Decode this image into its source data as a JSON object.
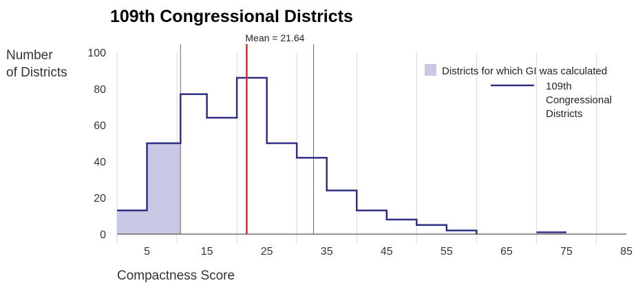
{
  "chart_data": {
    "type": "histogram-step",
    "title": "109th Congressional Districts",
    "ylabel_lines": [
      "Number",
      "of Districts"
    ],
    "xlabel": "Compactness Score",
    "x_ticks": [
      5,
      15,
      25,
      35,
      45,
      55,
      65,
      75,
      85
    ],
    "y_ticks": [
      0,
      20,
      40,
      60,
      80,
      100
    ],
    "xlim": [
      0,
      85
    ],
    "ylim": [
      0,
      100
    ],
    "grid": "vertical",
    "legend_position": "top-right",
    "bins": [
      {
        "x0": 0,
        "x1": 5,
        "value": 13
      },
      {
        "x0": 5,
        "x1": 10.6,
        "value": 50
      },
      {
        "x0": 10.6,
        "x1": 15,
        "value": 77
      },
      {
        "x0": 15,
        "x1": 20,
        "value": 64
      },
      {
        "x0": 20,
        "x1": 25,
        "value": 86
      },
      {
        "x0": 25,
        "x1": 30,
        "value": 50
      },
      {
        "x0": 30,
        "x1": 35,
        "value": 42
      },
      {
        "x0": 35,
        "x1": 40,
        "value": 24
      },
      {
        "x0": 40,
        "x1": 45,
        "value": 13
      },
      {
        "x0": 45,
        "x1": 50,
        "value": 8
      },
      {
        "x0": 50,
        "x1": 55,
        "value": 5
      },
      {
        "x0": 55,
        "x1": 60,
        "value": 2
      },
      {
        "x0": 60,
        "x1": 65,
        "value": 0
      },
      {
        "x0": 65,
        "x1": 70,
        "value": 0
      },
      {
        "x0": 70,
        "x1": 75,
        "value": 1
      }
    ],
    "shaded_region": {
      "x0": 0,
      "x1": 10.6,
      "label": "Districts for which GI was calculated"
    },
    "series": [
      {
        "name_lines": [
          "109th",
          "Congressional",
          "Districts"
        ]
      }
    ],
    "mean": {
      "value": 21.64,
      "label": "Mean = 21.64"
    },
    "reference_lines": [
      10.6,
      32.8
    ],
    "colors": {
      "line": "#2e2e84",
      "fill": "#c9c8e4",
      "mean": "#e8202a",
      "reference": "#666666",
      "grid": "#d8d8d8",
      "axis": "#555555"
    }
  }
}
